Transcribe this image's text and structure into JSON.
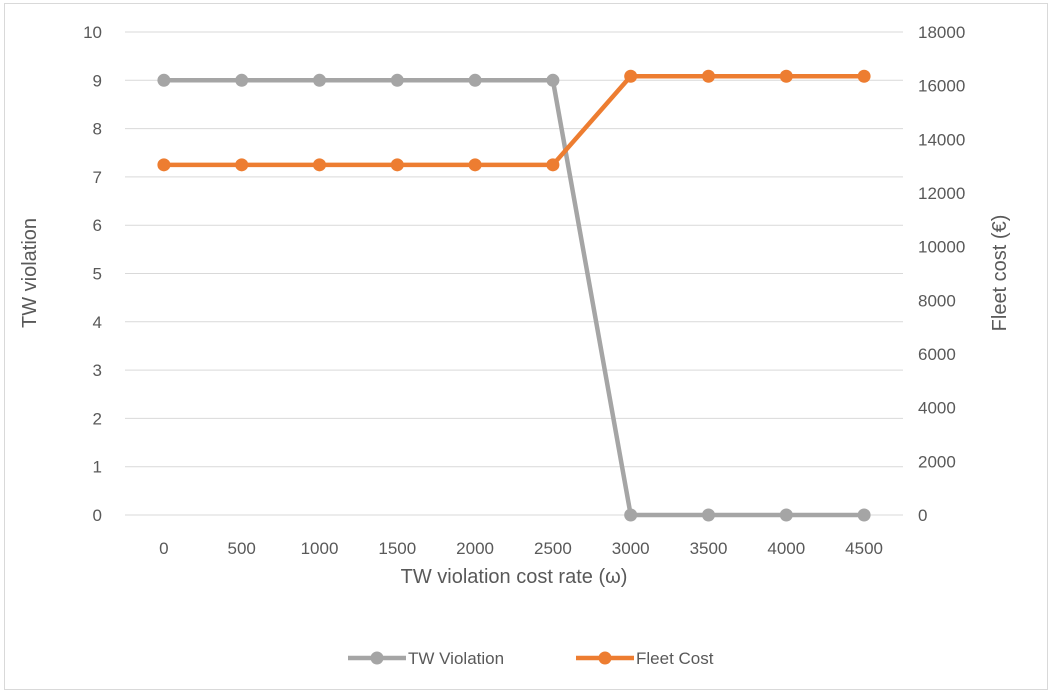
{
  "chart_data": {
    "type": "line",
    "title": "",
    "xlabel": "TW violation cost rate (ω)",
    "ylabel": "TW violation",
    "y2label": "Fleet cost (€)",
    "x": [
      "0",
      "500",
      "1000",
      "1500",
      "2000",
      "2500",
      "3000",
      "3500",
      "4000",
      "4500"
    ],
    "ylim": [
      0,
      10
    ],
    "y2lim": [
      0,
      18000
    ],
    "yticks": [
      "0",
      "1",
      "2",
      "3",
      "4",
      "5",
      "6",
      "7",
      "8",
      "9",
      "10"
    ],
    "y2ticks": [
      "0",
      "2000",
      "4000",
      "6000",
      "8000",
      "10000",
      "12000",
      "14000",
      "16000",
      "18000"
    ],
    "grid": true,
    "legend_position": "bottom",
    "series": [
      {
        "name": "TW Violation",
        "axis": "left",
        "color": "#a5a5a5",
        "values": [
          9,
          9,
          9,
          9,
          9,
          9,
          0,
          0,
          0,
          0
        ]
      },
      {
        "name": "Fleet Cost",
        "axis": "right",
        "color": "#ed7d31",
        "values": [
          13050,
          13050,
          13050,
          13050,
          13050,
          13050,
          16350,
          16350,
          16350,
          16350
        ]
      }
    ]
  }
}
